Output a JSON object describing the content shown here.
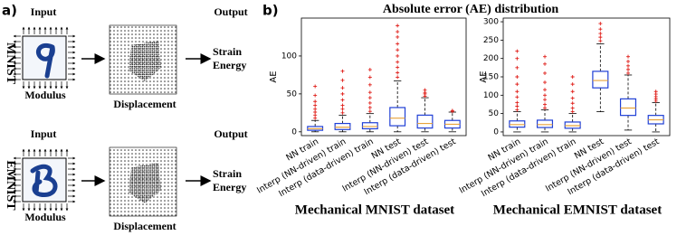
{
  "panel_a": {
    "label": "a)",
    "rows": [
      {
        "name": "MNIST",
        "input": "Input",
        "output": "Output",
        "modulus": "Modulus",
        "displacement": "Displacement",
        "result": "Strain Energy"
      },
      {
        "name": "EMNIST",
        "input": "Input",
        "output": "Output",
        "modulus": "Modulus",
        "displacement": "Displacement",
        "result": "Strain Energy"
      }
    ]
  },
  "panel_b": {
    "label": "b)",
    "title": "Absolute error (AE) distribution"
  },
  "chart_data": [
    {
      "type": "box",
      "title": "Mechanical MNIST dataset",
      "ylabel": "AE",
      "categories": [
        "NN train",
        "Interp (NN-driven) train",
        "Interp (data-driven) train",
        "NN  test",
        "Interp (NN-driven) test",
        "Interp (data-driven) test"
      ],
      "ylim": [
        -5,
        150
      ],
      "yticks": [
        0,
        50,
        100
      ],
      "box_color": "#1f3fd6",
      "median_color": "#e8a33b",
      "outlier_color": "#e0201b",
      "boxes": [
        {
          "whislo": 0,
          "q1": 2,
          "median": 4,
          "q3": 7,
          "whishi": 15,
          "outliers": [
            18,
            22,
            26,
            30,
            35,
            40,
            48,
            60
          ]
        },
        {
          "whislo": 0,
          "q1": 3,
          "median": 6,
          "q3": 11,
          "whishi": 22,
          "outliers": [
            25,
            30,
            35,
            42,
            50,
            58,
            68,
            80
          ]
        },
        {
          "whislo": 0,
          "q1": 4,
          "median": 7,
          "q3": 12,
          "whishi": 24,
          "outliers": [
            27,
            32,
            38,
            45,
            52,
            62,
            72,
            82
          ]
        },
        {
          "whislo": 0,
          "q1": 8,
          "median": 18,
          "q3": 32,
          "whishi": 67,
          "outliers": [
            72,
            78,
            85,
            92,
            100,
            108,
            116,
            125,
            132,
            140
          ]
        },
        {
          "whislo": 0,
          "q1": 5,
          "median": 11,
          "q3": 22,
          "whishi": 45,
          "outliers": [
            47,
            50,
            52,
            55
          ]
        },
        {
          "whislo": 0,
          "q1": 5,
          "median": 10,
          "q3": 15,
          "whishi": 26,
          "outliers": [
            27,
            28
          ]
        }
      ]
    },
    {
      "type": "box",
      "title": "Mechanical EMNIST dataset",
      "ylabel": "AE",
      "categories": [
        "NN train",
        "Interp (NN-driven) train",
        "Interp (data-driven) train",
        "NN  test",
        "Interp (NN-driven) test",
        "Interp (data-driven) test"
      ],
      "ylim": [
        -10,
        310
      ],
      "yticks": [
        0,
        50,
        100,
        150,
        200,
        250,
        300
      ],
      "box_color": "#1f3fd6",
      "median_color": "#e8a33b",
      "outlier_color": "#e0201b",
      "boxes": [
        {
          "whislo": 0,
          "q1": 13,
          "median": 20,
          "q3": 30,
          "whishi": 55,
          "outliers": [
            60,
            70,
            80,
            95,
            110,
            130,
            150,
            175,
            200,
            220
          ]
        },
        {
          "whislo": 0,
          "q1": 12,
          "median": 20,
          "q3": 32,
          "whishi": 60,
          "outliers": [
            65,
            75,
            88,
            100,
            115,
            135,
            160,
            185,
            205
          ]
        },
        {
          "whislo": 0,
          "q1": 10,
          "median": 17,
          "q3": 27,
          "whishi": 50,
          "outliers": [
            55,
            65,
            78,
            92,
            110,
            130,
            150
          ]
        },
        {
          "whislo": 55,
          "q1": 120,
          "median": 140,
          "q3": 165,
          "whishi": 240,
          "outliers": [
            248,
            258,
            268,
            280,
            295
          ]
        },
        {
          "whislo": 5,
          "q1": 45,
          "median": 65,
          "q3": 90,
          "whishi": 155,
          "outliers": [
            160,
            170,
            180,
            192,
            205
          ]
        },
        {
          "whislo": 0,
          "q1": 22,
          "median": 33,
          "q3": 45,
          "whishi": 80,
          "outliers": [
            84,
            90,
            96,
            103,
            110
          ]
        }
      ]
    }
  ]
}
